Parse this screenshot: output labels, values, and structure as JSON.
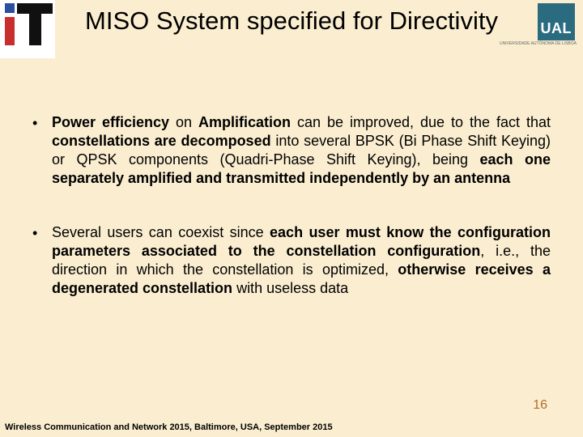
{
  "title": "MISO System specified for Directivity",
  "logos": {
    "left": {
      "bg": "#ffffff",
      "red": "#c82e2e",
      "black": "#101010",
      "blue": "#2a4fa0"
    },
    "right": {
      "square_bg": "#2b6b80",
      "text": "UAL",
      "subtitle": "UNIVERSIDADE AUTÓNOMA DE LISBOA"
    }
  },
  "bullets": [
    {
      "segments": [
        {
          "text": "Power efficiency",
          "bold": true
        },
        {
          "text": " on ",
          "bold": false
        },
        {
          "text": "Amplification",
          "bold": true
        },
        {
          "text": " can be improved, due to the fact that ",
          "bold": false
        },
        {
          "text": "constellations are decomposed",
          "bold": true
        },
        {
          "text": " into several BPSK (Bi Phase Shift Keying) or QPSK components (Quadri-Phase Shift Keying), being ",
          "bold": false
        },
        {
          "text": "each one separately amplified and transmitted independently by an antenna",
          "bold": true
        }
      ]
    },
    {
      "segments": [
        {
          "text": "Several users can coexist since ",
          "bold": false
        },
        {
          "text": "each user must know the configuration parameters associated to the constellation configuration",
          "bold": true
        },
        {
          "text": ", i.e., the direction in which the constellation is optimized, ",
          "bold": false
        },
        {
          "text": "otherwise receives a degenerated constellation",
          "bold": true
        },
        {
          "text": " with useless data",
          "bold": false
        }
      ]
    }
  ],
  "footer": "Wireless Communication and Network 2015, Baltimore, USA, September 2015",
  "page_number": "16",
  "colors": {
    "background": "#fbeed0",
    "title_text": "#000000",
    "body_text": "#000000",
    "page_number": "#b36b2a"
  },
  "typography": {
    "title_fontsize": 31,
    "body_fontsize": 18,
    "footer_fontsize": 11,
    "pagenum_fontsize": 16
  }
}
